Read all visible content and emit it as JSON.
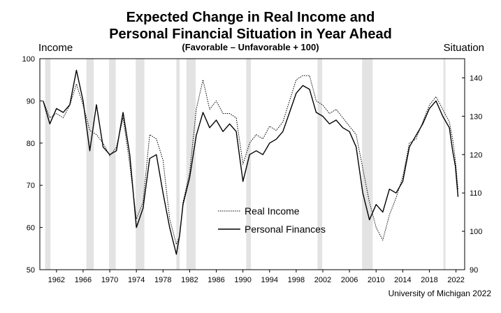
{
  "chart_data": {
    "type": "line",
    "title_line1": "Expected Change in Real Income and",
    "title_line2": "Personal Financial Situation in Year Ahead",
    "subtitle": "(Favorable – Unfavorable + 100)",
    "left_axis_label": "Income",
    "right_axis_label": "Situation",
    "credit": "University of Michigan 2022",
    "x_ticks": [
      1962,
      1966,
      1970,
      1974,
      1978,
      1982,
      1986,
      1990,
      1994,
      1998,
      2002,
      2006,
      2010,
      2014,
      2018,
      2022
    ],
    "xlim": [
      1959.5,
      2023.3
    ],
    "ylim_left": [
      50,
      100
    ],
    "yticks_left": [
      50,
      60,
      70,
      80,
      90,
      100
    ],
    "ylim_right": [
      90,
      145
    ],
    "yticks_right": [
      90,
      100,
      110,
      120,
      130,
      140
    ],
    "grid": false,
    "legend_position": "center-bottom",
    "recessions": [
      [
        1960.3,
        1961.1
      ],
      [
        1966.5,
        1967.6
      ],
      [
        1969.9,
        1970.9
      ],
      [
        1973.9,
        1975.2
      ],
      [
        1980.0,
        1980.5
      ],
      [
        1981.5,
        1982.9
      ],
      [
        1990.5,
        1991.2
      ],
      [
        2001.2,
        2001.9
      ],
      [
        2007.9,
        2009.5
      ],
      [
        2020.1,
        2020.4
      ]
    ],
    "series": [
      {
        "name": "Real Income",
        "axis": "left",
        "style": "dotted",
        "points": [
          [
            1960.0,
            90
          ],
          [
            1961.0,
            86
          ],
          [
            1962.0,
            87
          ],
          [
            1963.0,
            86
          ],
          [
            1964.0,
            89
          ],
          [
            1965.0,
            94
          ],
          [
            1966.0,
            89
          ],
          [
            1967.0,
            83
          ],
          [
            1968.0,
            82
          ],
          [
            1969.0,
            80
          ],
          [
            1970.0,
            77
          ],
          [
            1971.0,
            79
          ],
          [
            1972.0,
            86
          ],
          [
            1973.0,
            75
          ],
          [
            1974.0,
            62
          ],
          [
            1975.0,
            66
          ],
          [
            1976.0,
            82
          ],
          [
            1977.0,
            81
          ],
          [
            1978.0,
            76
          ],
          [
            1979.0,
            62
          ],
          [
            1980.0,
            56
          ],
          [
            1980.5,
            58
          ],
          [
            1981.0,
            66
          ],
          [
            1982.0,
            73
          ],
          [
            1983.0,
            88
          ],
          [
            1984.0,
            95
          ],
          [
            1985.0,
            88
          ],
          [
            1986.0,
            90
          ],
          [
            1987.0,
            87
          ],
          [
            1988.0,
            87
          ],
          [
            1989.0,
            86
          ],
          [
            1990.0,
            75
          ],
          [
            1991.0,
            80
          ],
          [
            1992.0,
            82
          ],
          [
            1993.0,
            81
          ],
          [
            1994.0,
            84
          ],
          [
            1995.0,
            83
          ],
          [
            1996.0,
            85
          ],
          [
            1997.0,
            90
          ],
          [
            1998.0,
            95
          ],
          [
            1999.0,
            96
          ],
          [
            2000.0,
            96
          ],
          [
            2001.0,
            90
          ],
          [
            2002.0,
            89
          ],
          [
            2003.0,
            87
          ],
          [
            2004.0,
            88
          ],
          [
            2005.0,
            86
          ],
          [
            2006.0,
            84
          ],
          [
            2007.0,
            82
          ],
          [
            2008.0,
            74
          ],
          [
            2009.0,
            66
          ],
          [
            2010.0,
            60
          ],
          [
            2011.0,
            57
          ],
          [
            2012.0,
            63
          ],
          [
            2013.0,
            67
          ],
          [
            2014.0,
            72
          ],
          [
            2015.0,
            80
          ],
          [
            2016.0,
            81
          ],
          [
            2017.0,
            85
          ],
          [
            2018.0,
            89
          ],
          [
            2019.0,
            91
          ],
          [
            2020.0,
            88
          ],
          [
            2021.0,
            85
          ],
          [
            2021.5,
            81
          ],
          [
            2021.9,
            76
          ],
          [
            2022.3,
            69
          ]
        ]
      },
      {
        "name": "Personal Finances",
        "axis": "right",
        "style": "solid",
        "points": [
          [
            1960.0,
            134
          ],
          [
            1961.0,
            128
          ],
          [
            1962.0,
            132
          ],
          [
            1963.0,
            131
          ],
          [
            1964.0,
            133
          ],
          [
            1965.0,
            142
          ],
          [
            1966.0,
            134
          ],
          [
            1967.0,
            121
          ],
          [
            1968.0,
            133
          ],
          [
            1969.0,
            122
          ],
          [
            1970.0,
            120
          ],
          [
            1971.0,
            121
          ],
          [
            1972.0,
            131
          ],
          [
            1973.0,
            120
          ],
          [
            1974.0,
            101
          ],
          [
            1975.0,
            106
          ],
          [
            1976.0,
            119
          ],
          [
            1977.0,
            120
          ],
          [
            1978.0,
            110
          ],
          [
            1979.0,
            101
          ],
          [
            1980.0,
            94
          ],
          [
            1980.5,
            99
          ],
          [
            1981.0,
            107
          ],
          [
            1982.0,
            114
          ],
          [
            1983.0,
            125
          ],
          [
            1984.0,
            131
          ],
          [
            1985.0,
            127
          ],
          [
            1986.0,
            129
          ],
          [
            1987.0,
            126
          ],
          [
            1988.0,
            128
          ],
          [
            1989.0,
            126
          ],
          [
            1990.0,
            113
          ],
          [
            1991.0,
            120
          ],
          [
            1992.0,
            121
          ],
          [
            1993.0,
            120
          ],
          [
            1994.0,
            123
          ],
          [
            1995.0,
            124
          ],
          [
            1996.0,
            126
          ],
          [
            1997.0,
            131
          ],
          [
            1998.0,
            136
          ],
          [
            1999.0,
            138
          ],
          [
            2000.0,
            137
          ],
          [
            2001.0,
            131
          ],
          [
            2002.0,
            130
          ],
          [
            2003.0,
            128
          ],
          [
            2004.0,
            129
          ],
          [
            2005.0,
            127
          ],
          [
            2006.0,
            126
          ],
          [
            2007.0,
            122
          ],
          [
            2008.0,
            110
          ],
          [
            2009.0,
            103
          ],
          [
            2010.0,
            107
          ],
          [
            2011.0,
            105
          ],
          [
            2012.0,
            111
          ],
          [
            2013.0,
            110
          ],
          [
            2014.0,
            113
          ],
          [
            2015.0,
            122
          ],
          [
            2016.0,
            125
          ],
          [
            2017.0,
            128
          ],
          [
            2018.0,
            132
          ],
          [
            2019.0,
            134
          ],
          [
            2020.0,
            130
          ],
          [
            2021.0,
            127
          ],
          [
            2021.5,
            121
          ],
          [
            2021.9,
            117
          ],
          [
            2022.3,
            109
          ]
        ]
      }
    ]
  }
}
